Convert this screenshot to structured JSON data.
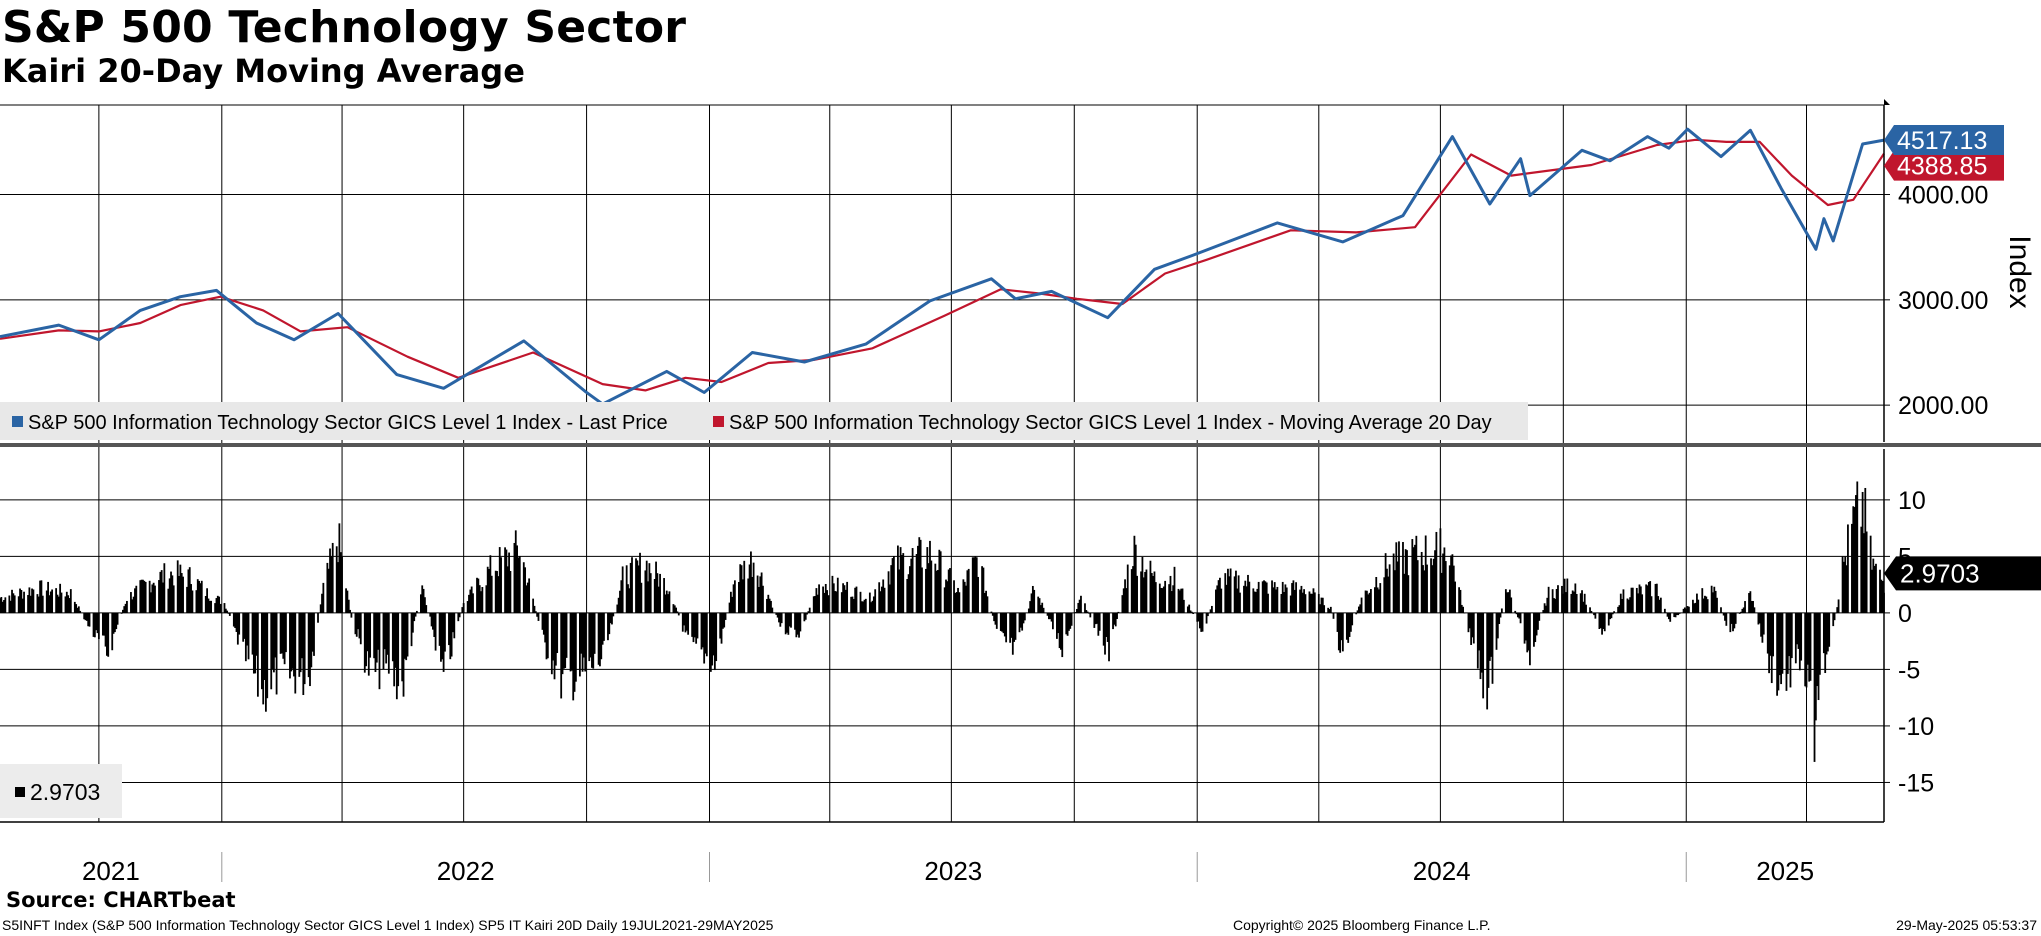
{
  "title": "S&P 500 Technology Sector",
  "subtitle": "Kairi 20-Day Moving Average",
  "source": "Source: CHARTbeat",
  "footer": {
    "description": "S5INFT Index (S&P 500 Information Technology Sector GICS Level 1 Index) SP5 IT Kairi 20D  Daily 19JUL2021-29MAY2025",
    "copyright": "Copyright© 2025 Bloomberg Finance L.P.",
    "timestamp": "29-May-2025 05:53:37"
  },
  "colors": {
    "price": "#2a64a4",
    "ma": "#c0162d",
    "kairi": "#000000",
    "legend_bg": "#e8e8e8"
  },
  "chart_data": [
    {
      "type": "line",
      "ylabel": "Index",
      "ylim": [
        1650,
        4850
      ],
      "yticks": [
        "2000.00",
        "3000.00",
        "4000.00"
      ],
      "grid": true,
      "x_range": [
        "2021-07-19",
        "2025-05-29"
      ],
      "legend_placement": "bottom-left",
      "last_value_labels": [
        {
          "series": "S&P 500 Information Technology Sector GICS Level 1 Index - Last Price",
          "text": "4517.13"
        },
        {
          "series": "S&P 500 Information Technology Sector GICS Level 1 Index - Moving Average 20 Day",
          "text": "4388.85"
        }
      ],
      "series": [
        {
          "name": "S&P 500 Information Technology Sector GICS Level 1 Index - Last Price",
          "points": [
            [
              "2021-07-19",
              2650
            ],
            [
              "2021-09-01",
              2760
            ],
            [
              "2021-10-01",
              2620
            ],
            [
              "2021-11-01",
              2900
            ],
            [
              "2021-12-01",
              3030
            ],
            [
              "2021-12-28",
              3090
            ],
            [
              "2022-01-27",
              2780
            ],
            [
              "2022-02-24",
              2620
            ],
            [
              "2022-03-29",
              2870
            ],
            [
              "2022-05-12",
              2290
            ],
            [
              "2022-06-16",
              2160
            ],
            [
              "2022-08-15",
              2610
            ],
            [
              "2022-09-30",
              2130
            ],
            [
              "2022-10-13",
              2010
            ],
            [
              "2022-11-30",
              2320
            ],
            [
              "2022-12-28",
              2120
            ],
            [
              "2023-02-02",
              2500
            ],
            [
              "2023-03-13",
              2410
            ],
            [
              "2023-04-28",
              2580
            ],
            [
              "2023-06-15",
              2990
            ],
            [
              "2023-07-31",
              3200
            ],
            [
              "2023-08-18",
              3010
            ],
            [
              "2023-09-14",
              3080
            ],
            [
              "2023-10-26",
              2830
            ],
            [
              "2023-11-30",
              3290
            ],
            [
              "2023-12-28",
              3420
            ],
            [
              "2024-03-01",
              3730
            ],
            [
              "2024-04-19",
              3550
            ],
            [
              "2024-06-03",
              3800
            ],
            [
              "2024-07-10",
              4550
            ],
            [
              "2024-08-07",
              3910
            ],
            [
              "2024-08-30",
              4340
            ],
            [
              "2024-09-06",
              3990
            ],
            [
              "2024-10-15",
              4420
            ],
            [
              "2024-11-05",
              4320
            ],
            [
              "2024-12-03",
              4550
            ],
            [
              "2024-12-19",
              4440
            ],
            [
              "2025-01-02",
              4620
            ],
            [
              "2025-01-27",
              4360
            ],
            [
              "2025-02-18",
              4610
            ],
            [
              "2025-03-13",
              4060
            ],
            [
              "2025-04-08",
              3480
            ],
            [
              "2025-04-14",
              3770
            ],
            [
              "2025-04-21",
              3560
            ],
            [
              "2025-05-13",
              4480
            ],
            [
              "2025-05-29",
              4517.13
            ]
          ]
        },
        {
          "name": "S&P 500 Information Technology Sector GICS Level 1 Index - Moving Average 20 Day",
          "points": [
            [
              "2021-07-19",
              2630
            ],
            [
              "2021-09-01",
              2710
            ],
            [
              "2021-10-01",
              2700
            ],
            [
              "2021-11-01",
              2780
            ],
            [
              "2021-12-01",
              2950
            ],
            [
              "2021-12-31",
              3030
            ],
            [
              "2022-02-01",
              2900
            ],
            [
              "2022-03-01",
              2700
            ],
            [
              "2022-04-05",
              2740
            ],
            [
              "2022-05-20",
              2460
            ],
            [
              "2022-06-27",
              2260
            ],
            [
              "2022-08-22",
              2500
            ],
            [
              "2022-10-13",
              2200
            ],
            [
              "2022-11-14",
              2140
            ],
            [
              "2022-12-14",
              2260
            ],
            [
              "2023-01-10",
              2220
            ],
            [
              "2023-02-14",
              2400
            ],
            [
              "2023-03-20",
              2430
            ],
            [
              "2023-05-03",
              2540
            ],
            [
              "2023-06-26",
              2850
            ],
            [
              "2023-08-07",
              3100
            ],
            [
              "2023-09-05",
              3060
            ],
            [
              "2023-10-03",
              3010
            ],
            [
              "2023-11-06",
              2960
            ],
            [
              "2023-12-08",
              3250
            ],
            [
              "2024-01-08",
              3380
            ],
            [
              "2024-03-11",
              3660
            ],
            [
              "2024-04-29",
              3640
            ],
            [
              "2024-06-12",
              3690
            ],
            [
              "2024-07-24",
              4380
            ],
            [
              "2024-08-23",
              4180
            ],
            [
              "2024-10-22",
              4280
            ],
            [
              "2024-12-10",
              4470
            ],
            [
              "2025-01-08",
              4520
            ],
            [
              "2025-01-31",
              4500
            ],
            [
              "2025-02-25",
              4500
            ],
            [
              "2025-03-21",
              4180
            ],
            [
              "2025-04-17",
              3900
            ],
            [
              "2025-05-06",
              3950
            ],
            [
              "2025-05-29",
              4388.85
            ]
          ]
        }
      ]
    },
    {
      "type": "bar",
      "ylim": [
        -18.5,
        14.5
      ],
      "yticks": [
        -15,
        -10,
        -5,
        0,
        5,
        10
      ],
      "grid": true,
      "last_value_label": "2.9703",
      "legend": [
        {
          "series": "SP5 IT Kairi 20D",
          "text": "2.9703"
        }
      ],
      "x_range": [
        "2021-07-19",
        "2025-05-29"
      ],
      "x_tick_labels": [
        "2021",
        "2022",
        "2023",
        "2024",
        "2025"
      ],
      "series": [
        {
          "name": "SP5 IT Kairi 20D",
          "points": [
            [
              "2021-07-19",
              1.5
            ],
            [
              "2021-08-16",
              2.5
            ],
            [
              "2021-09-10",
              2.0
            ],
            [
              "2021-09-24",
              -1.5
            ],
            [
              "2021-10-08",
              -4.0
            ],
            [
              "2021-10-22",
              1.5
            ],
            [
              "2021-11-12",
              3.5
            ],
            [
              "2021-11-26",
              4.0
            ],
            [
              "2021-12-10",
              3.5
            ],
            [
              "2021-12-21",
              2.0
            ],
            [
              "2022-01-03",
              1.0
            ],
            [
              "2022-01-14",
              -3.0
            ],
            [
              "2022-01-31",
              -8.0
            ],
            [
              "2022-02-14",
              -6.0
            ],
            [
              "2022-03-07",
              -6.5
            ],
            [
              "2022-03-18",
              2.5
            ],
            [
              "2022-03-29",
              7.5
            ],
            [
              "2022-04-08",
              -0.5
            ],
            [
              "2022-04-22",
              -6.0
            ],
            [
              "2022-05-06",
              -5.5
            ],
            [
              "2022-05-16",
              -7.5
            ],
            [
              "2022-05-31",
              3.0
            ],
            [
              "2022-06-16",
              -6.5
            ],
            [
              "2022-07-01",
              1.0
            ],
            [
              "2022-07-22",
              4.5
            ],
            [
              "2022-08-12",
              6.5
            ],
            [
              "2022-08-30",
              -3.0
            ],
            [
              "2022-09-13",
              -7.0
            ],
            [
              "2022-09-30",
              -6.0
            ],
            [
              "2022-10-14",
              -4.5
            ],
            [
              "2022-10-28",
              3.5
            ],
            [
              "2022-11-14",
              5.0
            ],
            [
              "2022-12-02",
              2.5
            ],
            [
              "2022-12-16",
              -3.0
            ],
            [
              "2023-01-06",
              -5.0
            ],
            [
              "2023-01-20",
              3.5
            ],
            [
              "2023-02-03",
              5.5
            ],
            [
              "2023-02-24",
              -1.5
            ],
            [
              "2023-03-10",
              -2.0
            ],
            [
              "2023-03-24",
              3.0
            ],
            [
              "2023-04-14",
              2.5
            ],
            [
              "2023-05-01",
              1.5
            ],
            [
              "2023-05-19",
              5.0
            ],
            [
              "2023-06-16",
              6.0
            ],
            [
              "2023-07-07",
              2.0
            ],
            [
              "2023-07-21",
              5.5
            ],
            [
              "2023-08-04",
              -2.0
            ],
            [
              "2023-08-18",
              -4.0
            ],
            [
              "2023-09-01",
              2.5
            ],
            [
              "2023-09-22",
              -3.5
            ],
            [
              "2023-10-06",
              1.5
            ],
            [
              "2023-10-27",
              -4.0
            ],
            [
              "2023-11-14",
              6.5
            ],
            [
              "2023-11-30",
              3.5
            ],
            [
              "2023-12-15",
              3.5
            ],
            [
              "2024-01-05",
              -2.0
            ],
            [
              "2024-01-19",
              3.5
            ],
            [
              "2024-02-09",
              3.0
            ],
            [
              "2024-03-01",
              2.5
            ],
            [
              "2024-03-22",
              2.5
            ],
            [
              "2024-04-10",
              0.5
            ],
            [
              "2024-04-19",
              -4.5
            ],
            [
              "2024-05-03",
              1.5
            ],
            [
              "2024-05-24",
              5.0
            ],
            [
              "2024-06-14",
              6.0
            ],
            [
              "2024-07-08",
              6.5
            ],
            [
              "2024-07-24",
              -3.0
            ],
            [
              "2024-08-06",
              -8.0
            ],
            [
              "2024-08-19",
              3.0
            ],
            [
              "2024-09-06",
              -4.0
            ],
            [
              "2024-09-20",
              2.0
            ],
            [
              "2024-10-11",
              3.0
            ],
            [
              "2024-10-31",
              -2.0
            ],
            [
              "2024-11-15",
              2.0
            ],
            [
              "2024-12-10",
              2.5
            ],
            [
              "2024-12-20",
              -1.0
            ],
            [
              "2025-01-08",
              1.5
            ],
            [
              "2025-01-21",
              2.5
            ],
            [
              "2025-02-03",
              -2.0
            ],
            [
              "2025-02-18",
              2.0
            ],
            [
              "2025-03-04",
              -5.0
            ],
            [
              "2025-03-13",
              -7.0
            ],
            [
              "2025-03-28",
              -4.5
            ],
            [
              "2025-04-04",
              -9.0
            ],
            [
              "2025-04-08",
              -13.0
            ],
            [
              "2025-04-14",
              -4.0
            ],
            [
              "2025-04-17",
              -5.5
            ],
            [
              "2025-04-28",
              4.5
            ],
            [
              "2025-05-06",
              9.0
            ],
            [
              "2025-05-13",
              11.0
            ],
            [
              "2025-05-20",
              5.0
            ],
            [
              "2025-05-29",
              2.9703
            ]
          ]
        }
      ]
    }
  ],
  "legend": {
    "price": "S&P 500 Information Technology Sector GICS Level 1 Index - Last Price",
    "ma": "S&P 500 Information Technology Sector GICS Level 1 Index - Moving Average 20 Day",
    "kairi": "2.9703"
  }
}
